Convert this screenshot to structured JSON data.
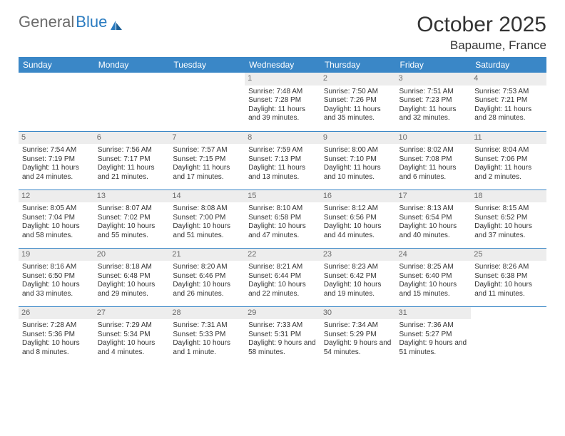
{
  "brand": {
    "part1": "General",
    "part2": "Blue"
  },
  "title": "October 2025",
  "location": "Bapaume, France",
  "theme": {
    "header_bg": "#3a87c7",
    "header_text": "#ffffff",
    "border_color": "#3a87c7",
    "daynum_bg": "#ededed",
    "daynum_text": "#6a6a6a",
    "body_text": "#333333",
    "logo_gray": "#6b6b6b",
    "logo_blue": "#2a7bc0",
    "page_bg": "#ffffff",
    "month_title_fontsize": 30,
    "location_fontsize": 17,
    "header_fontsize": 12,
    "cell_fontsize": 10
  },
  "day_headers": [
    "Sunday",
    "Monday",
    "Tuesday",
    "Wednesday",
    "Thursday",
    "Friday",
    "Saturday"
  ],
  "weeks": [
    [
      null,
      null,
      null,
      {
        "n": "1",
        "sr": "7:48 AM",
        "ss": "7:28 PM",
        "dl": "11 hours and 39 minutes."
      },
      {
        "n": "2",
        "sr": "7:50 AM",
        "ss": "7:26 PM",
        "dl": "11 hours and 35 minutes."
      },
      {
        "n": "3",
        "sr": "7:51 AM",
        "ss": "7:23 PM",
        "dl": "11 hours and 32 minutes."
      },
      {
        "n": "4",
        "sr": "7:53 AM",
        "ss": "7:21 PM",
        "dl": "11 hours and 28 minutes."
      }
    ],
    [
      {
        "n": "5",
        "sr": "7:54 AM",
        "ss": "7:19 PM",
        "dl": "11 hours and 24 minutes."
      },
      {
        "n": "6",
        "sr": "7:56 AM",
        "ss": "7:17 PM",
        "dl": "11 hours and 21 minutes."
      },
      {
        "n": "7",
        "sr": "7:57 AM",
        "ss": "7:15 PM",
        "dl": "11 hours and 17 minutes."
      },
      {
        "n": "8",
        "sr": "7:59 AM",
        "ss": "7:13 PM",
        "dl": "11 hours and 13 minutes."
      },
      {
        "n": "9",
        "sr": "8:00 AM",
        "ss": "7:10 PM",
        "dl": "11 hours and 10 minutes."
      },
      {
        "n": "10",
        "sr": "8:02 AM",
        "ss": "7:08 PM",
        "dl": "11 hours and 6 minutes."
      },
      {
        "n": "11",
        "sr": "8:04 AM",
        "ss": "7:06 PM",
        "dl": "11 hours and 2 minutes."
      }
    ],
    [
      {
        "n": "12",
        "sr": "8:05 AM",
        "ss": "7:04 PM",
        "dl": "10 hours and 58 minutes."
      },
      {
        "n": "13",
        "sr": "8:07 AM",
        "ss": "7:02 PM",
        "dl": "10 hours and 55 minutes."
      },
      {
        "n": "14",
        "sr": "8:08 AM",
        "ss": "7:00 PM",
        "dl": "10 hours and 51 minutes."
      },
      {
        "n": "15",
        "sr": "8:10 AM",
        "ss": "6:58 PM",
        "dl": "10 hours and 47 minutes."
      },
      {
        "n": "16",
        "sr": "8:12 AM",
        "ss": "6:56 PM",
        "dl": "10 hours and 44 minutes."
      },
      {
        "n": "17",
        "sr": "8:13 AM",
        "ss": "6:54 PM",
        "dl": "10 hours and 40 minutes."
      },
      {
        "n": "18",
        "sr": "8:15 AM",
        "ss": "6:52 PM",
        "dl": "10 hours and 37 minutes."
      }
    ],
    [
      {
        "n": "19",
        "sr": "8:16 AM",
        "ss": "6:50 PM",
        "dl": "10 hours and 33 minutes."
      },
      {
        "n": "20",
        "sr": "8:18 AM",
        "ss": "6:48 PM",
        "dl": "10 hours and 29 minutes."
      },
      {
        "n": "21",
        "sr": "8:20 AM",
        "ss": "6:46 PM",
        "dl": "10 hours and 26 minutes."
      },
      {
        "n": "22",
        "sr": "8:21 AM",
        "ss": "6:44 PM",
        "dl": "10 hours and 22 minutes."
      },
      {
        "n": "23",
        "sr": "8:23 AM",
        "ss": "6:42 PM",
        "dl": "10 hours and 19 minutes."
      },
      {
        "n": "24",
        "sr": "8:25 AM",
        "ss": "6:40 PM",
        "dl": "10 hours and 15 minutes."
      },
      {
        "n": "25",
        "sr": "8:26 AM",
        "ss": "6:38 PM",
        "dl": "10 hours and 11 minutes."
      }
    ],
    [
      {
        "n": "26",
        "sr": "7:28 AM",
        "ss": "5:36 PM",
        "dl": "10 hours and 8 minutes."
      },
      {
        "n": "27",
        "sr": "7:29 AM",
        "ss": "5:34 PM",
        "dl": "10 hours and 4 minutes."
      },
      {
        "n": "28",
        "sr": "7:31 AM",
        "ss": "5:33 PM",
        "dl": "10 hours and 1 minute."
      },
      {
        "n": "29",
        "sr": "7:33 AM",
        "ss": "5:31 PM",
        "dl": "9 hours and 58 minutes."
      },
      {
        "n": "30",
        "sr": "7:34 AM",
        "ss": "5:29 PM",
        "dl": "9 hours and 54 minutes."
      },
      {
        "n": "31",
        "sr": "7:36 AM",
        "ss": "5:27 PM",
        "dl": "9 hours and 51 minutes."
      },
      null
    ]
  ],
  "labels": {
    "sunrise": "Sunrise:",
    "sunset": "Sunset:",
    "daylight": "Daylight:"
  }
}
